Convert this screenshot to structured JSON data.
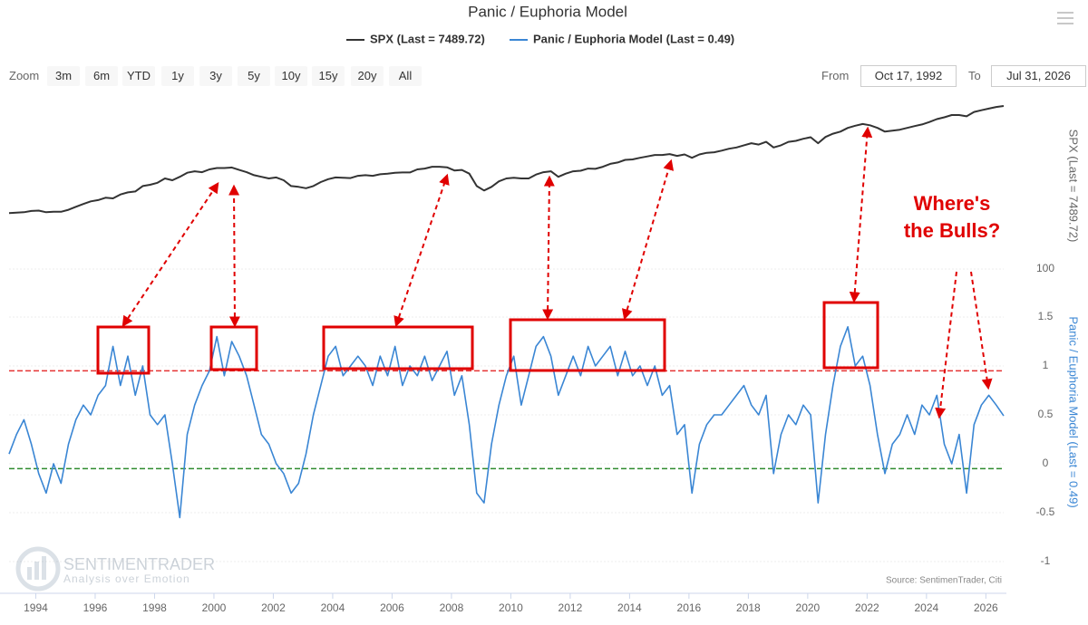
{
  "chart_data": {
    "type": "line",
    "title": "Panic / Euphoria Model",
    "source": "Source: SentimenTrader, Citi",
    "x": [
      1993.1,
      1993.35,
      1993.6,
      1993.85,
      1994.1,
      1994.35,
      1994.6,
      1994.85,
      1995.1,
      1995.35,
      1995.6,
      1995.85,
      1996.1,
      1996.35,
      1996.6,
      1996.85,
      1997.1,
      1997.35,
      1997.6,
      1997.85,
      1998.1,
      1998.35,
      1998.6,
      1998.85,
      1999.1,
      1999.35,
      1999.6,
      1999.85,
      2000.1,
      2000.35,
      2000.6,
      2000.85,
      2001.1,
      2001.35,
      2001.6,
      2001.85,
      2002.1,
      2002.35,
      2002.6,
      2002.85,
      2003.1,
      2003.35,
      2003.6,
      2003.85,
      2004.1,
      2004.35,
      2004.6,
      2004.85,
      2005.1,
      2005.35,
      2005.6,
      2005.85,
      2006.1,
      2006.35,
      2006.6,
      2006.85,
      2007.1,
      2007.35,
      2007.6,
      2007.85,
      2008.1,
      2008.35,
      2008.6,
      2008.85,
      2009.1,
      2009.35,
      2009.6,
      2009.85,
      2010.1,
      2010.35,
      2010.6,
      2010.85,
      2011.1,
      2011.35,
      2011.6,
      2011.85,
      2012.1,
      2012.35,
      2012.6,
      2012.85,
      2013.1,
      2013.35,
      2013.6,
      2013.85,
      2014.1,
      2014.35,
      2014.6,
      2014.85,
      2015.1,
      2015.35,
      2015.6,
      2015.85,
      2016.1,
      2016.35,
      2016.6,
      2016.85,
      2017.1,
      2017.35,
      2017.6,
      2017.85,
      2018.1,
      2018.35,
      2018.6,
      2018.85,
      2019.1,
      2019.35,
      2019.6,
      2019.85,
      2020.1,
      2020.35,
      2020.6,
      2020.85,
      2021.1,
      2021.35,
      2021.6,
      2021.85,
      2022.1,
      2022.35,
      2022.6,
      2022.85,
      2023.1,
      2023.35,
      2023.6,
      2023.85,
      2024.1,
      2024.35,
      2024.6,
      2024.85,
      2025.1,
      2025.35,
      2025.6,
      2025.85,
      2026.1,
      2026.35,
      2026.6
    ],
    "series": [
      {
        "name": "SPX (Last = 7489.72)",
        "color": "#333333",
        "axis": "y",
        "values": [
          440,
          445,
          450,
          465,
          470,
          450,
          455,
          455,
          480,
          520,
          560,
          600,
          620,
          660,
          650,
          720,
          760,
          780,
          900,
          930,
          980,
          1100,
          1050,
          1150,
          1280,
          1330,
          1300,
          1400,
          1450,
          1450,
          1470,
          1380,
          1300,
          1200,
          1150,
          1100,
          1130,
          1050,
          900,
          880,
          850,
          900,
          1000,
          1080,
          1130,
          1120,
          1110,
          1180,
          1200,
          1180,
          1230,
          1250,
          1280,
          1290,
          1290,
          1400,
          1430,
          1500,
          1500,
          1480,
          1360,
          1380,
          1250,
          900,
          800,
          880,
          1020,
          1100,
          1120,
          1100,
          1100,
          1220,
          1300,
          1330,
          1150,
          1250,
          1330,
          1350,
          1430,
          1420,
          1500,
          1620,
          1680,
          1800,
          1820,
          1900,
          1970,
          2050,
          2050,
          2100,
          2000,
          2080,
          1900,
          2080,
          2170,
          2200,
          2300,
          2420,
          2500,
          2650,
          2800,
          2700,
          2900,
          2500,
          2650,
          2900,
          2980,
          3150,
          3280,
          2800,
          3300,
          3600,
          3800,
          4200,
          4450,
          4650,
          4500,
          4200,
          3800,
          3900,
          4000,
          4200,
          4400,
          4600,
          4900,
          5300,
          5550,
          5900,
          5900,
          5700,
          6400,
          6700,
          7000,
          7300,
          7490
        ]
      },
      {
        "name": "Panic / Euphoria Model (Last = 0.49)",
        "color": "#3a86d4",
        "axis": "y2",
        "values": [
          0.1,
          0.3,
          0.45,
          0.2,
          -0.1,
          -0.3,
          0.0,
          -0.2,
          0.2,
          0.45,
          0.6,
          0.5,
          0.7,
          0.8,
          1.2,
          0.8,
          1.1,
          0.7,
          1.0,
          0.5,
          0.4,
          0.5,
          0.0,
          -0.55,
          0.3,
          0.6,
          0.8,
          0.95,
          1.3,
          0.9,
          1.25,
          1.1,
          0.9,
          0.6,
          0.3,
          0.2,
          0.0,
          -0.1,
          -0.3,
          -0.2,
          0.1,
          0.5,
          0.8,
          1.1,
          1.2,
          0.9,
          1.0,
          1.1,
          1.0,
          0.8,
          1.1,
          0.9,
          1.2,
          0.8,
          1.0,
          0.9,
          1.1,
          0.85,
          1.0,
          1.15,
          0.7,
          0.9,
          0.4,
          -0.3,
          -0.4,
          0.2,
          0.6,
          0.9,
          1.1,
          0.6,
          0.9,
          1.2,
          1.3,
          1.1,
          0.7,
          0.9,
          1.1,
          0.9,
          1.2,
          1.0,
          1.1,
          1.2,
          0.9,
          1.15,
          0.9,
          1.0,
          0.8,
          1.0,
          0.7,
          0.8,
          0.3,
          0.4,
          -0.3,
          0.2,
          0.4,
          0.5,
          0.5,
          0.6,
          0.7,
          0.8,
          0.6,
          0.5,
          0.7,
          -0.1,
          0.3,
          0.5,
          0.4,
          0.6,
          0.5,
          -0.4,
          0.3,
          0.8,
          1.2,
          1.4,
          1.0,
          1.1,
          0.8,
          0.3,
          -0.1,
          0.2,
          0.3,
          0.5,
          0.3,
          0.6,
          0.5,
          0.7,
          0.2,
          0.0,
          0.3,
          -0.3,
          0.4,
          0.6,
          0.7,
          0.6,
          0.49
        ]
      }
    ],
    "xlim": [
      1993.1,
      2026.6
    ],
    "xticks": [
      1994,
      1996,
      1998,
      2000,
      2002,
      2004,
      2006,
      2008,
      2010,
      2012,
      2014,
      2016,
      2018,
      2020,
      2022,
      2024,
      2026
    ],
    "ylim": [
      100,
      10000
    ],
    "log_y": true,
    "yticks": [
      100
    ],
    "y2lim": [
      -1,
      2
    ],
    "y2ticks": [
      -1,
      -0.5,
      0,
      0.5,
      1,
      1.5
    ],
    "grid": true,
    "reference_lines": [
      {
        "value": 0.95,
        "color": "#e53333",
        "axis": "y2"
      },
      {
        "value": -0.05,
        "color": "#2e8b2e",
        "axis": "y2"
      }
    ],
    "annotations": [
      {
        "text": "Where's the Bulls?",
        "color": "#e00000"
      }
    ]
  },
  "range_selector": {
    "zoom_label": "Zoom",
    "buttons": [
      "3m",
      "6m",
      "YTD",
      "1y",
      "3y",
      "5y",
      "10y",
      "15y",
      "20y",
      "All"
    ],
    "from_label": "From",
    "from": "Oct 17, 1992",
    "to_label": "To",
    "to": "Jul 31, 2026"
  },
  "watermark": {
    "brand": "SENTIMENTRADER",
    "tagline": "Analysis over Emotion"
  }
}
